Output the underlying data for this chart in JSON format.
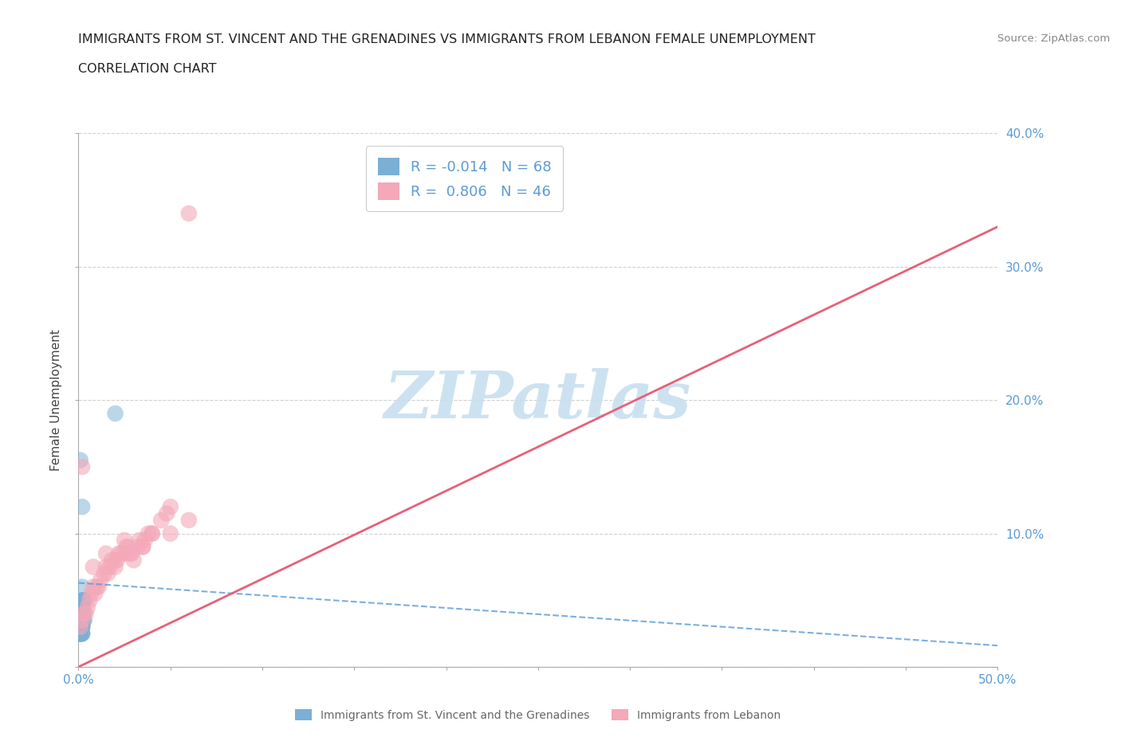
{
  "title_line1": "IMMIGRANTS FROM ST. VINCENT AND THE GRENADINES VS IMMIGRANTS FROM LEBANON FEMALE UNEMPLOYMENT",
  "title_line2": "CORRELATION CHART",
  "source_text": "Source: ZipAtlas.com",
  "ylabel": "Female Unemployment",
  "xlim": [
    0.0,
    0.5
  ],
  "ylim": [
    0.0,
    0.4
  ],
  "xtick_positions": [
    0.0,
    0.05,
    0.1,
    0.15,
    0.2,
    0.25,
    0.3,
    0.35,
    0.4,
    0.45,
    0.5
  ],
  "xticklabels": [
    "0.0%",
    "",
    "",
    "",
    "",
    "",
    "",
    "",
    "",
    "",
    "50.0%"
  ],
  "ytick_positions": [
    0.0,
    0.1,
    0.2,
    0.3,
    0.4
  ],
  "yticklabels_right": [
    "",
    "10.0%",
    "20.0%",
    "30.0%",
    "40.0%"
  ],
  "color_blue": "#7bafd4",
  "color_pink": "#f4a8b8",
  "color_trend_blue": "#5b9bd5",
  "color_trend_pink": "#e8607a",
  "color_grid": "#cccccc",
  "color_watermark": "#c8dff0",
  "color_tick_label": "#5b9bd5",
  "R_blue": -0.014,
  "N_blue": 68,
  "R_pink": 0.806,
  "N_pink": 46,
  "legend_label_blue": "Immigrants from St. Vincent and the Grenadines",
  "legend_label_pink": "Immigrants from Lebanon",
  "blue_trend_x0": 0.0,
  "blue_trend_y0": 0.063,
  "blue_trend_x1": 0.5,
  "blue_trend_y1": 0.016,
  "pink_trend_x0": 0.0,
  "pink_trend_y0": 0.0,
  "pink_trend_x1": 0.5,
  "pink_trend_y1": 0.33,
  "blue_scatter_x": [
    0.001,
    0.002,
    0.001,
    0.003,
    0.002,
    0.001,
    0.002,
    0.003,
    0.001,
    0.002,
    0.001,
    0.002,
    0.001,
    0.003,
    0.002,
    0.001,
    0.002,
    0.001,
    0.002,
    0.001,
    0.002,
    0.001,
    0.002,
    0.001,
    0.002,
    0.003,
    0.001,
    0.002,
    0.001,
    0.002,
    0.001,
    0.002,
    0.001,
    0.002,
    0.001,
    0.002,
    0.001,
    0.002,
    0.001,
    0.002,
    0.001,
    0.002,
    0.001,
    0.002,
    0.001,
    0.003,
    0.002,
    0.001,
    0.002,
    0.001,
    0.002,
    0.001,
    0.002,
    0.001,
    0.003,
    0.002,
    0.001,
    0.002,
    0.001,
    0.002,
    0.001,
    0.002,
    0.001,
    0.003,
    0.02,
    0.002,
    0.001,
    0.002
  ],
  "blue_scatter_y": [
    0.03,
    0.04,
    0.025,
    0.035,
    0.045,
    0.03,
    0.04,
    0.05,
    0.035,
    0.04,
    0.03,
    0.045,
    0.025,
    0.035,
    0.05,
    0.03,
    0.04,
    0.025,
    0.045,
    0.03,
    0.04,
    0.025,
    0.035,
    0.03,
    0.04,
    0.05,
    0.025,
    0.035,
    0.03,
    0.04,
    0.045,
    0.03,
    0.04,
    0.025,
    0.035,
    0.03,
    0.045,
    0.025,
    0.04,
    0.03,
    0.035,
    0.025,
    0.04,
    0.03,
    0.045,
    0.05,
    0.035,
    0.03,
    0.04,
    0.025,
    0.035,
    0.03,
    0.04,
    0.025,
    0.05,
    0.035,
    0.03,
    0.04,
    0.025,
    0.045,
    0.03,
    0.035,
    0.025,
    0.04,
    0.19,
    0.06,
    0.155,
    0.12
  ],
  "pink_scatter_x": [
    0.001,
    0.005,
    0.01,
    0.015,
    0.02,
    0.025,
    0.03,
    0.04,
    0.05,
    0.06,
    0.002,
    0.007,
    0.012,
    0.018,
    0.022,
    0.028,
    0.035,
    0.045,
    0.003,
    0.008,
    0.014,
    0.02,
    0.026,
    0.032,
    0.038,
    0.048,
    0.004,
    0.009,
    0.016,
    0.021,
    0.027,
    0.033,
    0.04,
    0.05,
    0.006,
    0.011,
    0.017,
    0.023,
    0.029,
    0.036,
    0.002,
    0.008,
    0.015,
    0.025,
    0.035,
    0.06
  ],
  "pink_scatter_y": [
    0.03,
    0.045,
    0.06,
    0.075,
    0.075,
    0.085,
    0.08,
    0.1,
    0.1,
    0.11,
    0.035,
    0.055,
    0.065,
    0.08,
    0.085,
    0.085,
    0.09,
    0.11,
    0.04,
    0.06,
    0.07,
    0.08,
    0.09,
    0.09,
    0.1,
    0.115,
    0.04,
    0.055,
    0.07,
    0.08,
    0.09,
    0.095,
    0.1,
    0.12,
    0.05,
    0.06,
    0.075,
    0.085,
    0.085,
    0.095,
    0.15,
    0.075,
    0.085,
    0.095,
    0.09,
    0.34
  ],
  "watermark": "ZIPatlas",
  "background_color": "#ffffff"
}
